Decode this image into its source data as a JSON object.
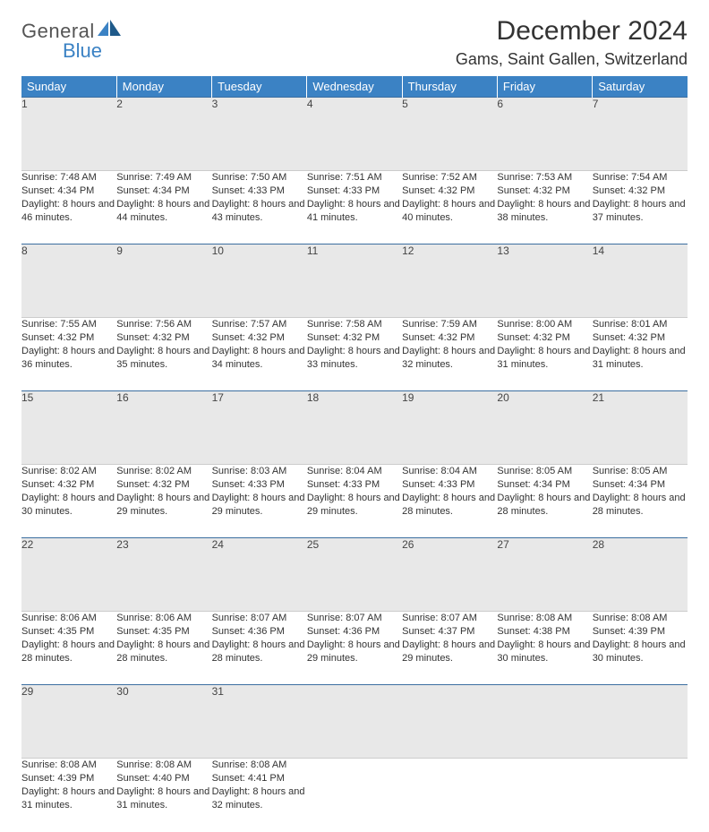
{
  "brand": {
    "line1": "General",
    "line2": "Blue"
  },
  "title": "December 2024",
  "location": "Gams, Saint Gallen, Switzerland",
  "colors": {
    "header_bg": "#3b82c4",
    "header_text": "#ffffff",
    "daynum_bg": "#e8e8e8",
    "rule": "#3b6ea0",
    "body_text": "#333333",
    "page_bg": "#ffffff"
  },
  "dayHeaders": [
    "Sunday",
    "Monday",
    "Tuesday",
    "Wednesday",
    "Thursday",
    "Friday",
    "Saturday"
  ],
  "weeks": [
    [
      {
        "num": "1",
        "sunrise": "Sunrise: 7:48 AM",
        "sunset": "Sunset: 4:34 PM",
        "daylight": "Daylight: 8 hours and 46 minutes."
      },
      {
        "num": "2",
        "sunrise": "Sunrise: 7:49 AM",
        "sunset": "Sunset: 4:34 PM",
        "daylight": "Daylight: 8 hours and 44 minutes."
      },
      {
        "num": "3",
        "sunrise": "Sunrise: 7:50 AM",
        "sunset": "Sunset: 4:33 PM",
        "daylight": "Daylight: 8 hours and 43 minutes."
      },
      {
        "num": "4",
        "sunrise": "Sunrise: 7:51 AM",
        "sunset": "Sunset: 4:33 PM",
        "daylight": "Daylight: 8 hours and 41 minutes."
      },
      {
        "num": "5",
        "sunrise": "Sunrise: 7:52 AM",
        "sunset": "Sunset: 4:32 PM",
        "daylight": "Daylight: 8 hours and 40 minutes."
      },
      {
        "num": "6",
        "sunrise": "Sunrise: 7:53 AM",
        "sunset": "Sunset: 4:32 PM",
        "daylight": "Daylight: 8 hours and 38 minutes."
      },
      {
        "num": "7",
        "sunrise": "Sunrise: 7:54 AM",
        "sunset": "Sunset: 4:32 PM",
        "daylight": "Daylight: 8 hours and 37 minutes."
      }
    ],
    [
      {
        "num": "8",
        "sunrise": "Sunrise: 7:55 AM",
        "sunset": "Sunset: 4:32 PM",
        "daylight": "Daylight: 8 hours and 36 minutes."
      },
      {
        "num": "9",
        "sunrise": "Sunrise: 7:56 AM",
        "sunset": "Sunset: 4:32 PM",
        "daylight": "Daylight: 8 hours and 35 minutes."
      },
      {
        "num": "10",
        "sunrise": "Sunrise: 7:57 AM",
        "sunset": "Sunset: 4:32 PM",
        "daylight": "Daylight: 8 hours and 34 minutes."
      },
      {
        "num": "11",
        "sunrise": "Sunrise: 7:58 AM",
        "sunset": "Sunset: 4:32 PM",
        "daylight": "Daylight: 8 hours and 33 minutes."
      },
      {
        "num": "12",
        "sunrise": "Sunrise: 7:59 AM",
        "sunset": "Sunset: 4:32 PM",
        "daylight": "Daylight: 8 hours and 32 minutes."
      },
      {
        "num": "13",
        "sunrise": "Sunrise: 8:00 AM",
        "sunset": "Sunset: 4:32 PM",
        "daylight": "Daylight: 8 hours and 31 minutes."
      },
      {
        "num": "14",
        "sunrise": "Sunrise: 8:01 AM",
        "sunset": "Sunset: 4:32 PM",
        "daylight": "Daylight: 8 hours and 31 minutes."
      }
    ],
    [
      {
        "num": "15",
        "sunrise": "Sunrise: 8:02 AM",
        "sunset": "Sunset: 4:32 PM",
        "daylight": "Daylight: 8 hours and 30 minutes."
      },
      {
        "num": "16",
        "sunrise": "Sunrise: 8:02 AM",
        "sunset": "Sunset: 4:32 PM",
        "daylight": "Daylight: 8 hours and 29 minutes."
      },
      {
        "num": "17",
        "sunrise": "Sunrise: 8:03 AM",
        "sunset": "Sunset: 4:33 PM",
        "daylight": "Daylight: 8 hours and 29 minutes."
      },
      {
        "num": "18",
        "sunrise": "Sunrise: 8:04 AM",
        "sunset": "Sunset: 4:33 PM",
        "daylight": "Daylight: 8 hours and 29 minutes."
      },
      {
        "num": "19",
        "sunrise": "Sunrise: 8:04 AM",
        "sunset": "Sunset: 4:33 PM",
        "daylight": "Daylight: 8 hours and 28 minutes."
      },
      {
        "num": "20",
        "sunrise": "Sunrise: 8:05 AM",
        "sunset": "Sunset: 4:34 PM",
        "daylight": "Daylight: 8 hours and 28 minutes."
      },
      {
        "num": "21",
        "sunrise": "Sunrise: 8:05 AM",
        "sunset": "Sunset: 4:34 PM",
        "daylight": "Daylight: 8 hours and 28 minutes."
      }
    ],
    [
      {
        "num": "22",
        "sunrise": "Sunrise: 8:06 AM",
        "sunset": "Sunset: 4:35 PM",
        "daylight": "Daylight: 8 hours and 28 minutes."
      },
      {
        "num": "23",
        "sunrise": "Sunrise: 8:06 AM",
        "sunset": "Sunset: 4:35 PM",
        "daylight": "Daylight: 8 hours and 28 minutes."
      },
      {
        "num": "24",
        "sunrise": "Sunrise: 8:07 AM",
        "sunset": "Sunset: 4:36 PM",
        "daylight": "Daylight: 8 hours and 28 minutes."
      },
      {
        "num": "25",
        "sunrise": "Sunrise: 8:07 AM",
        "sunset": "Sunset: 4:36 PM",
        "daylight": "Daylight: 8 hours and 29 minutes."
      },
      {
        "num": "26",
        "sunrise": "Sunrise: 8:07 AM",
        "sunset": "Sunset: 4:37 PM",
        "daylight": "Daylight: 8 hours and 29 minutes."
      },
      {
        "num": "27",
        "sunrise": "Sunrise: 8:08 AM",
        "sunset": "Sunset: 4:38 PM",
        "daylight": "Daylight: 8 hours and 30 minutes."
      },
      {
        "num": "28",
        "sunrise": "Sunrise: 8:08 AM",
        "sunset": "Sunset: 4:39 PM",
        "daylight": "Daylight: 8 hours and 30 minutes."
      }
    ],
    [
      {
        "num": "29",
        "sunrise": "Sunrise: 8:08 AM",
        "sunset": "Sunset: 4:39 PM",
        "daylight": "Daylight: 8 hours and 31 minutes."
      },
      {
        "num": "30",
        "sunrise": "Sunrise: 8:08 AM",
        "sunset": "Sunset: 4:40 PM",
        "daylight": "Daylight: 8 hours and 31 minutes."
      },
      {
        "num": "31",
        "sunrise": "Sunrise: 8:08 AM",
        "sunset": "Sunset: 4:41 PM",
        "daylight": "Daylight: 8 hours and 32 minutes."
      },
      null,
      null,
      null,
      null
    ]
  ]
}
